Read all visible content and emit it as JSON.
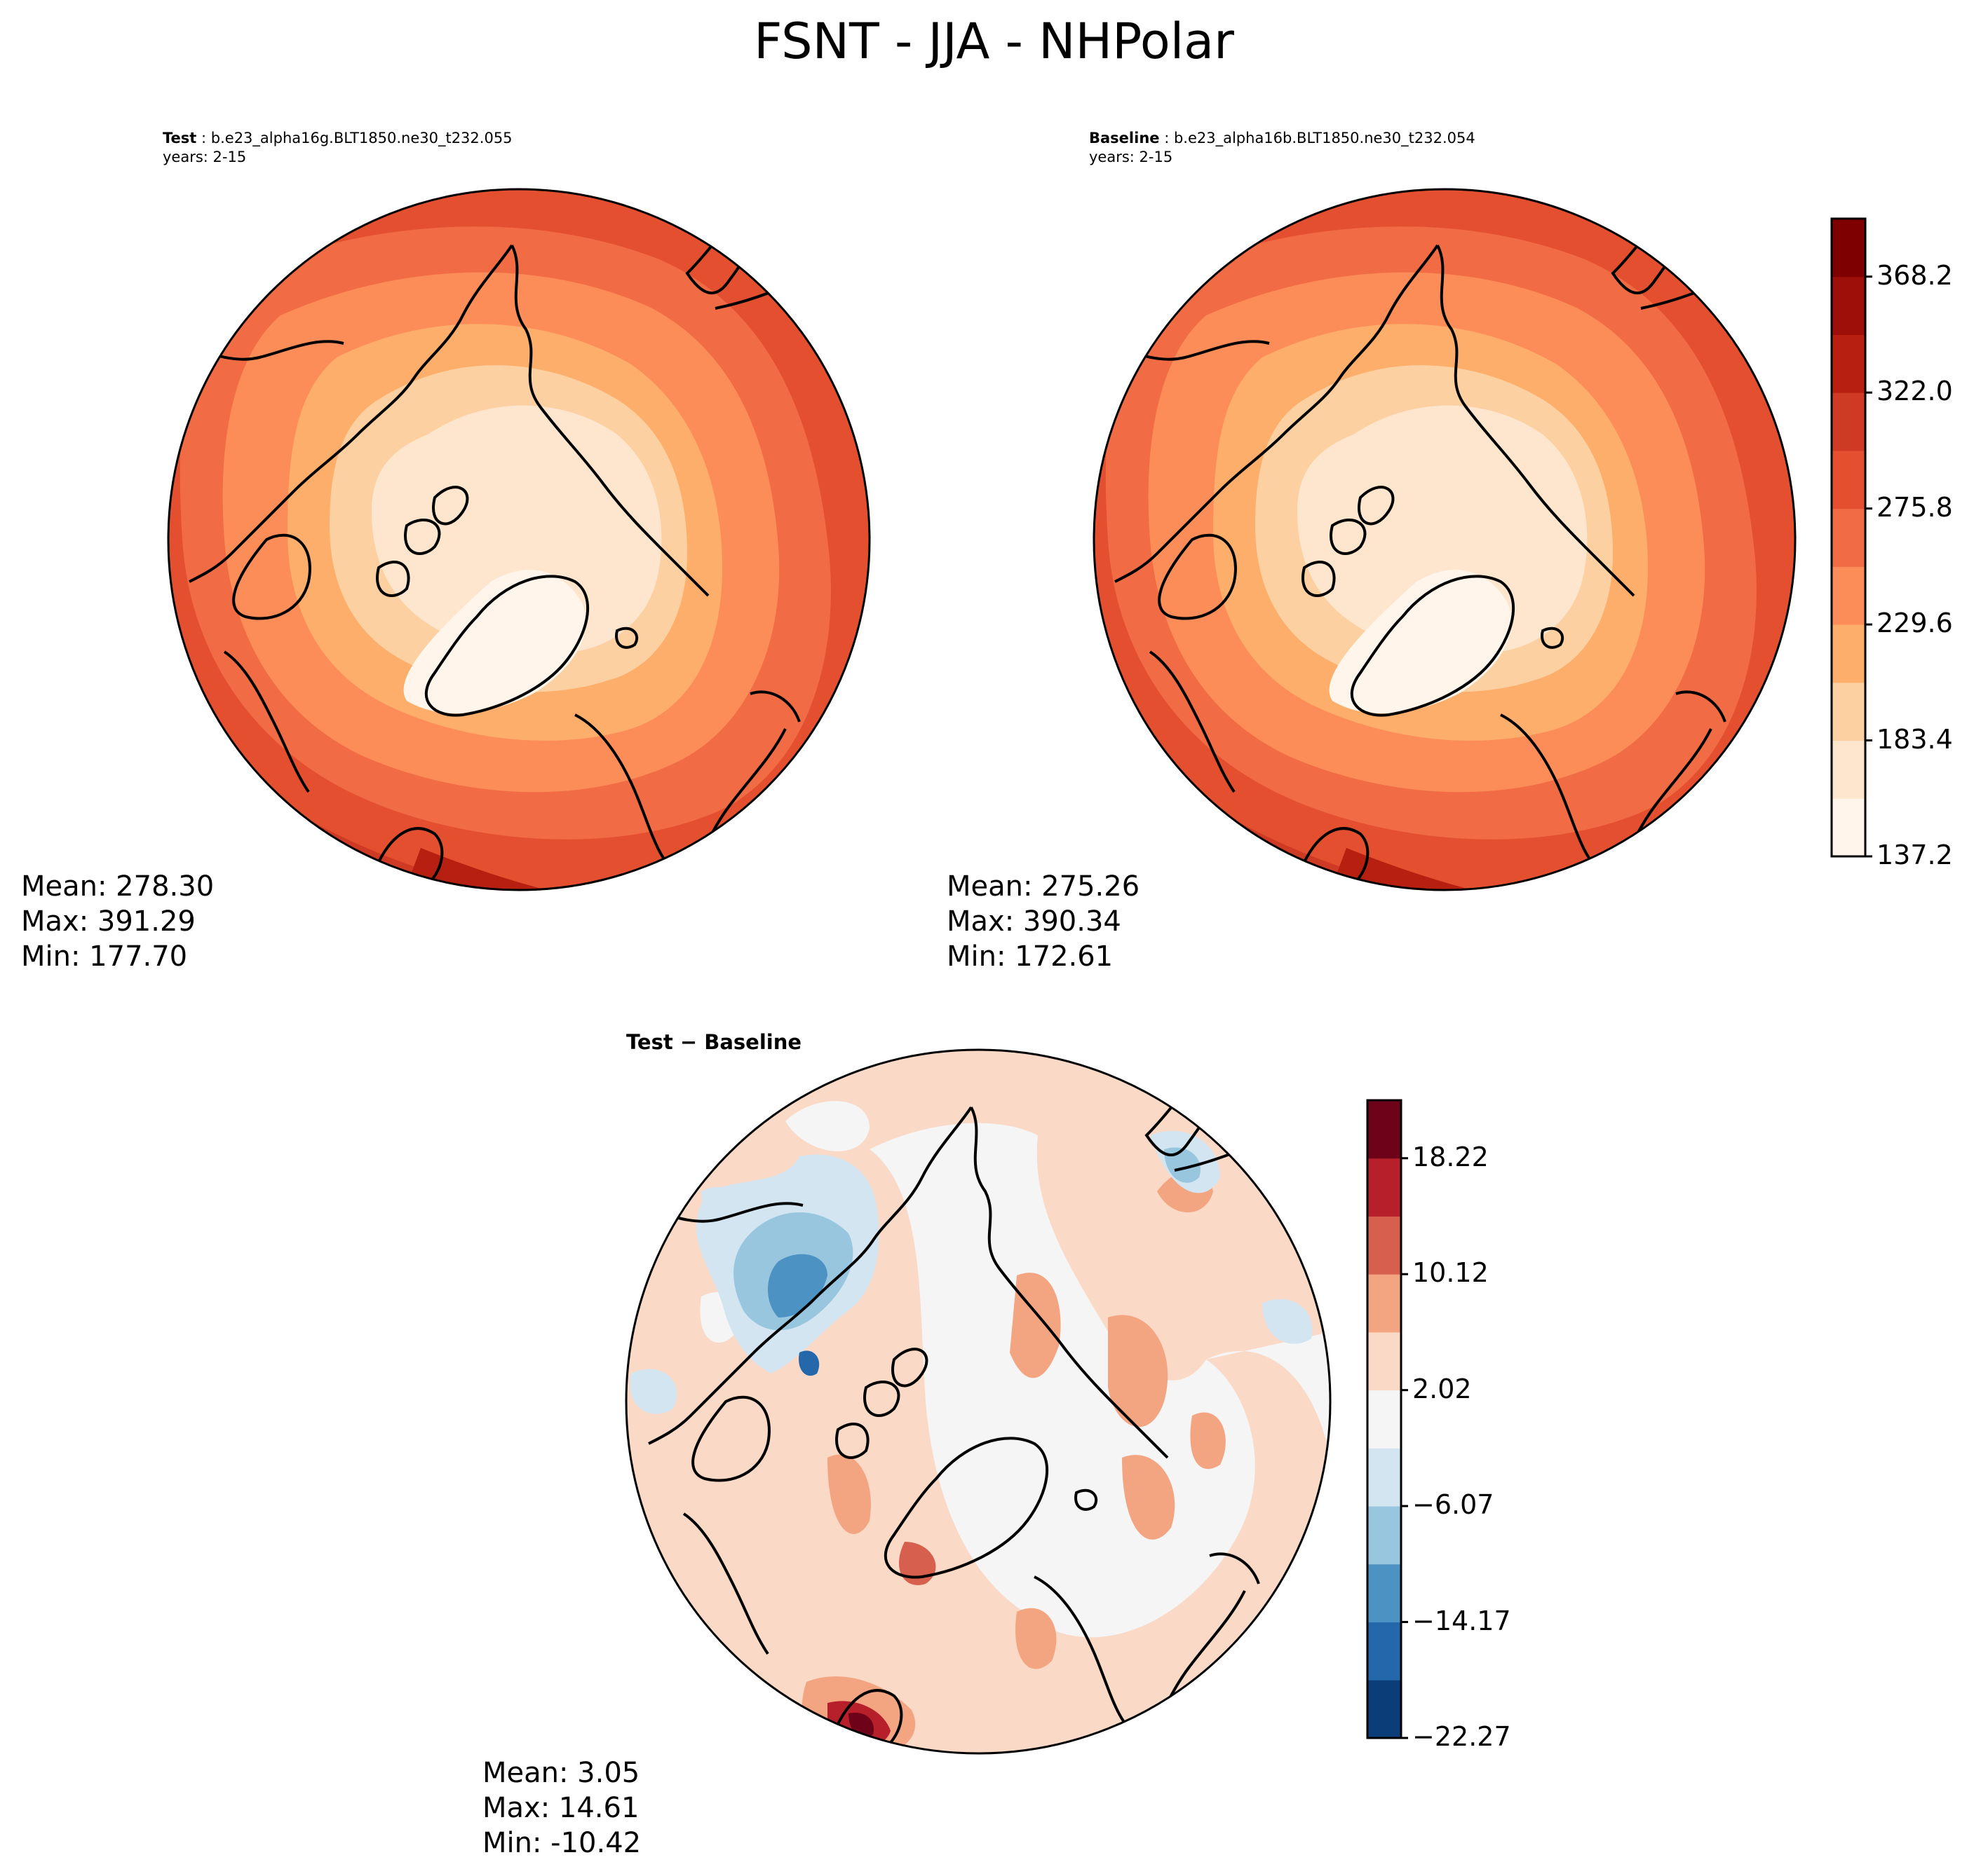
{
  "title": "FSNT - JJA - NHPolar",
  "test_panel": {
    "label": "Test",
    "name": "b.e23_alpha16g.BLT1850.ne30_t232.055",
    "years": "years: 2-15",
    "stats": {
      "mean": "Mean: 278.30",
      "max": "Max: 391.29",
      "min": "Min: 177.70"
    }
  },
  "baseline_panel": {
    "label": "Baseline",
    "name": "b.e23_alpha16b.BLT1850.ne30_t232.054",
    "years": "years: 2-15",
    "stats": {
      "mean": "Mean: 275.26",
      "max": "Max: 390.34",
      "min": "Min: 172.61"
    }
  },
  "diff_panel": {
    "title": "Test − Baseline",
    "stats": {
      "mean": "Mean:  3.05",
      "max": "Max: 14.61",
      "min": "Min: -10.42"
    }
  },
  "colorbars": {
    "main": {
      "ticks": [
        "137.2",
        "183.4",
        "229.6",
        "275.8",
        "322.0",
        "368.2"
      ],
      "colors": [
        "#fff5eb",
        "#fee6ce",
        "#fdd0a2",
        "#fdae6b",
        "#fc8d59",
        "#f16c45",
        "#e4502f",
        "#cf3a24",
        "#b71f10",
        "#9e0f09",
        "#7f0000"
      ]
    },
    "diff": {
      "ticks": [
        "−22.27",
        "−14.17",
        "−6.07",
        "2.02",
        "10.12",
        "18.22"
      ],
      "colors": [
        "#0b3d78",
        "#2468ab",
        "#4c93c4",
        "#98c6df",
        "#d3e5f1",
        "#f5f5f5",
        "#fbd9c7",
        "#f3a582",
        "#d6604d",
        "#b71f2b",
        "#6d0219"
      ]
    }
  }
}
